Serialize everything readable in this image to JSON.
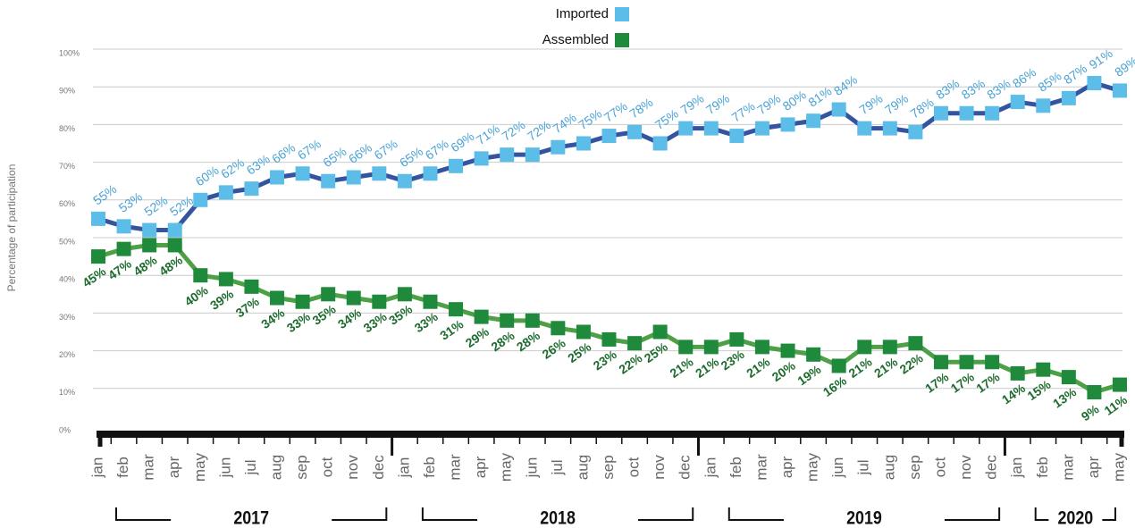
{
  "chart_data": {
    "type": "line",
    "y_label": "Percentage of participation",
    "categories": [
      "jan",
      "feb",
      "mar",
      "apr",
      "may",
      "jun",
      "jul",
      "aug",
      "sep",
      "oct",
      "nov",
      "dec",
      "jan",
      "feb",
      "mar",
      "apr",
      "may",
      "jun",
      "jul",
      "aug",
      "sep",
      "oct",
      "nov",
      "dec",
      "jan",
      "feb",
      "mar",
      "apr",
      "may",
      "jun",
      "jul",
      "aug",
      "sep",
      "oct",
      "nov",
      "dec",
      "jan",
      "feb",
      "mar",
      "apr",
      "may"
    ],
    "years": [
      "2017",
      "2018",
      "2019",
      "2020"
    ],
    "series": [
      {
        "name": "Imported",
        "color": "#5bbde8",
        "line_color": "#34549f",
        "label_color": "#4aa3d6",
        "label_side": "above",
        "values": [
          55,
          53,
          52,
          52,
          60,
          62,
          63,
          66,
          67,
          65,
          66,
          67,
          65,
          67,
          69,
          71,
          72,
          72,
          74,
          75,
          77,
          78,
          75,
          79,
          79,
          77,
          79,
          80,
          81,
          84,
          79,
          79,
          78,
          83,
          83,
          83,
          86,
          85,
          87,
          91,
          89
        ],
        "value_labels": [
          "55%",
          "53%",
          "52%",
          "52%",
          "60%",
          "62%",
          "63%",
          "66%",
          "67%",
          "65%",
          "66%",
          "67%",
          "65%",
          "67%",
          "69%",
          "71%",
          "72%",
          "72%",
          "74%",
          "75%",
          "77%",
          "78%",
          "75%",
          "79%",
          "79%",
          "77%",
          "79%",
          "80%",
          "81%",
          "84%",
          "79%",
          "79%",
          "78%",
          "83%",
          "83%",
          "83%",
          "86%",
          "85%",
          "87%",
          "91%",
          "89%"
        ]
      },
      {
        "name": "Assembled",
        "color": "#1f8a3b",
        "line_color": "#4da046",
        "label_color": "#1e6b2e",
        "label_side": "below",
        "values": [
          45,
          47,
          48,
          48,
          40,
          39,
          37,
          34,
          33,
          35,
          34,
          33,
          35,
          33,
          31,
          29,
          28,
          28,
          26,
          25,
          23,
          22,
          25,
          21,
          21,
          23,
          21,
          20,
          19,
          16,
          21,
          21,
          22,
          17,
          17,
          17,
          14,
          15,
          13,
          9,
          11
        ],
        "value_labels": [
          "45%",
          "47%",
          "48%",
          "48%",
          "40%",
          "39%",
          "37%",
          "34%",
          "33%",
          "35%",
          "34%",
          "33%",
          "35%",
          "33%",
          "31%",
          "29%",
          "28%",
          "28%",
          "26%",
          "25%",
          "23%",
          "22%",
          "25%",
          "21%",
          "21%",
          "23%",
          "21%",
          "20%",
          "19%",
          "16%",
          "21%",
          "21%",
          "22%",
          "17%",
          "17%",
          "17%",
          "14%",
          "15%",
          "13%",
          "9%",
          "11%"
        ]
      }
    ],
    "ylim": [
      0,
      100
    ],
    "yticks": [
      {
        "value": 0,
        "label": "0%"
      },
      {
        "value": 10,
        "label": "10%"
      },
      {
        "value": 20,
        "label": "20%"
      },
      {
        "value": 30,
        "label": "30%"
      },
      {
        "value": 40,
        "label": "40%"
      },
      {
        "value": 50,
        "label": "50%"
      },
      {
        "value": 60,
        "label": "60%"
      },
      {
        "value": 70,
        "label": "70%"
      },
      {
        "value": 80,
        "label": "80%"
      },
      {
        "value": 90,
        "label": "90%"
      },
      {
        "value": 100,
        "label": "100%"
      }
    ],
    "grid": true
  }
}
